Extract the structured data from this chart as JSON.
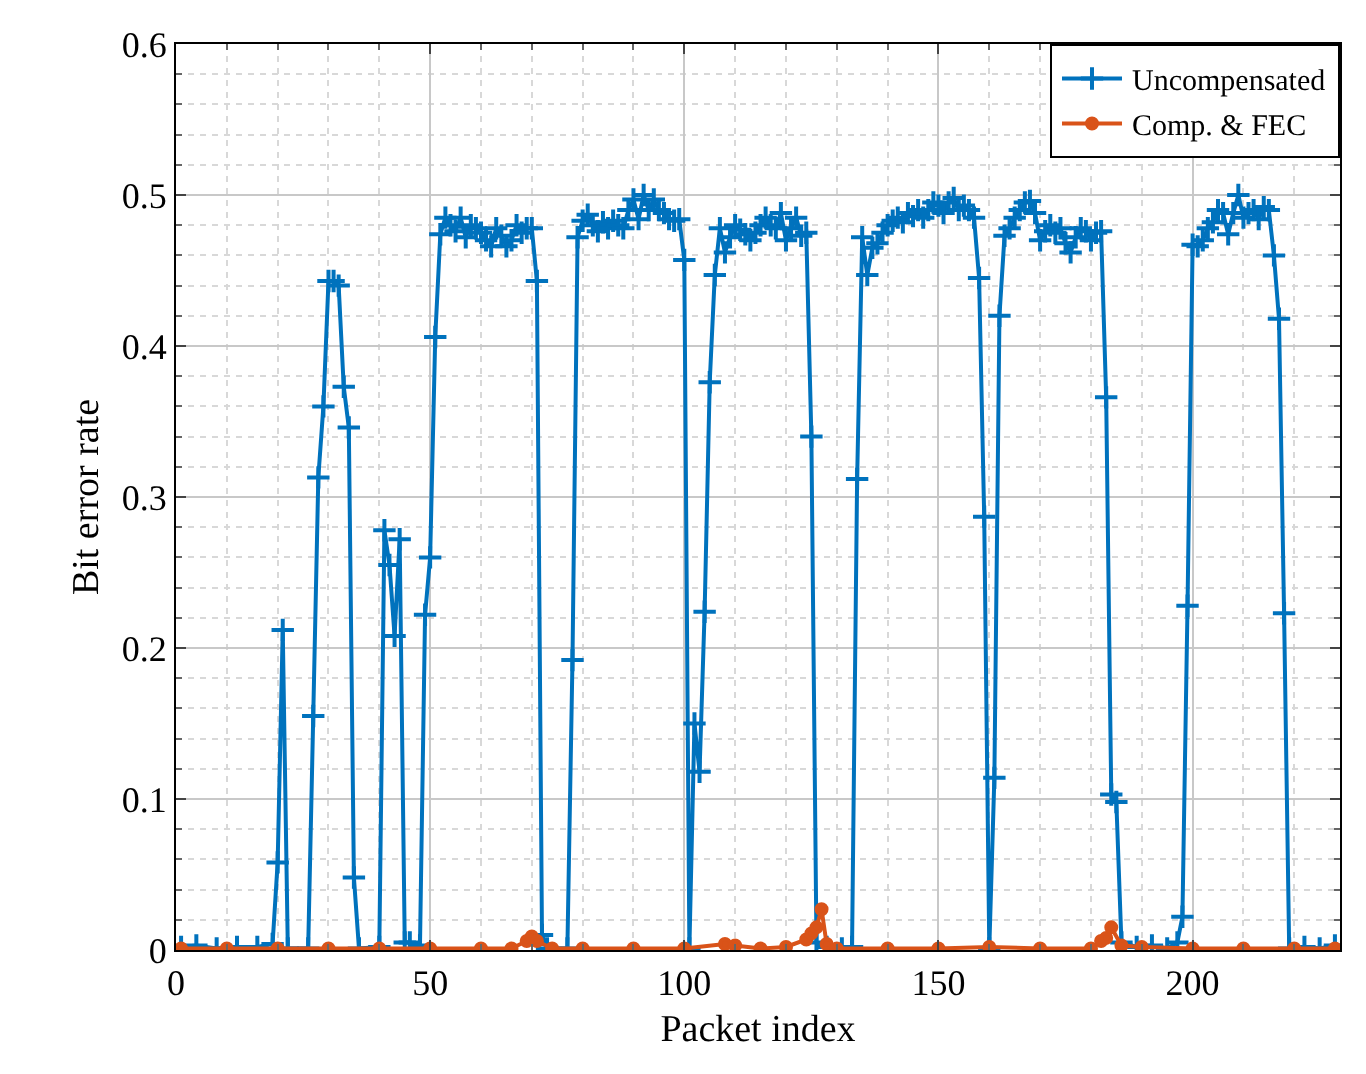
{
  "chart_data": {
    "type": "line",
    "xlabel": "Packet index",
    "ylabel": "Bit error rate",
    "xlim": [
      0,
      229
    ],
    "ylim": [
      0,
      0.6
    ],
    "xticks": [
      0,
      50,
      100,
      150,
      200
    ],
    "yticks": [
      0,
      0.1,
      0.2,
      0.3,
      0.4,
      0.5,
      0.6
    ],
    "grid": true,
    "legend": "top right",
    "line_style": "solid",
    "series": [
      {
        "name": "Uncompensated",
        "color": "#0072bd",
        "marker": "cross",
        "x": [
          1,
          4,
          8,
          12,
          16,
          19,
          20,
          21,
          22,
          26,
          27,
          28,
          29,
          30,
          31,
          32,
          33,
          34,
          35,
          36,
          40,
          41,
          42,
          43,
          44,
          45,
          46,
          48,
          49,
          50,
          51,
          52,
          53,
          54,
          55,
          56,
          57,
          58,
          59,
          60,
          61,
          62,
          63,
          64,
          65,
          66,
          67,
          68,
          69,
          70,
          71,
          72,
          73,
          77,
          78,
          79,
          80,
          81,
          82,
          83,
          84,
          85,
          86,
          87,
          88,
          89,
          90,
          91,
          92,
          93,
          94,
          95,
          96,
          97,
          98,
          99,
          100,
          101,
          102,
          103,
          104,
          105,
          106,
          107,
          108,
          109,
          110,
          111,
          112,
          113,
          114,
          115,
          116,
          117,
          118,
          119,
          120,
          121,
          122,
          123,
          124,
          125,
          126,
          128,
          131,
          133,
          134,
          135,
          136,
          137,
          138,
          139,
          140,
          141,
          142,
          143,
          144,
          145,
          146,
          147,
          148,
          149,
          150,
          151,
          152,
          153,
          154,
          155,
          156,
          157,
          158,
          159,
          160,
          161,
          162,
          163,
          164,
          165,
          166,
          167,
          168,
          169,
          170,
          171,
          172,
          173,
          174,
          175,
          176,
          177,
          178,
          179,
          180,
          181,
          182,
          183,
          184,
          185,
          186,
          189,
          192,
          195,
          197,
          198,
          199,
          200,
          201,
          202,
          203,
          204,
          205,
          206,
          207,
          208,
          209,
          210,
          211,
          212,
          213,
          214,
          215,
          216,
          217,
          218,
          219,
          222,
          225,
          228
        ],
        "values": [
          0.002,
          0.003,
          0.001,
          0.002,
          0.002,
          0.004,
          0.058,
          0.212,
          0.001,
          0.001,
          0.155,
          0.313,
          0.36,
          0.443,
          0.443,
          0.44,
          0.373,
          0.346,
          0.048,
          0.001,
          0.002,
          0.278,
          0.255,
          0.208,
          0.272,
          0.005,
          0.005,
          0.003,
          0.222,
          0.26,
          0.406,
          0.474,
          0.485,
          0.48,
          0.476,
          0.485,
          0.472,
          0.48,
          0.478,
          0.475,
          0.47,
          0.466,
          0.478,
          0.473,
          0.466,
          0.47,
          0.48,
          0.475,
          0.478,
          0.478,
          0.443,
          0.01,
          0.001,
          0.001,
          0.192,
          0.472,
          0.483,
          0.487,
          0.48,
          0.476,
          0.482,
          0.478,
          0.483,
          0.48,
          0.478,
          0.49,
          0.497,
          0.484,
          0.5,
          0.49,
          0.497,
          0.49,
          0.488,
          0.484,
          0.483,
          0.484,
          0.457,
          0.001,
          0.15,
          0.118,
          0.224,
          0.376,
          0.447,
          0.478,
          0.462,
          0.472,
          0.48,
          0.477,
          0.474,
          0.47,
          0.475,
          0.48,
          0.485,
          0.48,
          0.478,
          0.488,
          0.47,
          0.478,
          0.485,
          0.473,
          0.475,
          0.34,
          0.005,
          0.002,
          0.001,
          0.002,
          0.312,
          0.472,
          0.447,
          0.465,
          0.468,
          0.475,
          0.48,
          0.483,
          0.485,
          0.482,
          0.488,
          0.486,
          0.49,
          0.485,
          0.49,
          0.495,
          0.493,
          0.488,
          0.495,
          0.498,
          0.49,
          0.493,
          0.49,
          0.485,
          0.445,
          0.287,
          0.001,
          0.114,
          0.42,
          0.473,
          0.478,
          0.485,
          0.49,
          0.495,
          0.496,
          0.488,
          0.47,
          0.476,
          0.48,
          0.475,
          0.478,
          0.468,
          0.462,
          0.472,
          0.478,
          0.476,
          0.47,
          0.475,
          0.476,
          0.366,
          0.103,
          0.098,
          0.005,
          0.002,
          0.003,
          0.001,
          0.005,
          0.022,
          0.228,
          0.467,
          0.466,
          0.47,
          0.478,
          0.482,
          0.49,
          0.488,
          0.474,
          0.488,
          0.5,
          0.485,
          0.488,
          0.49,
          0.484,
          0.492,
          0.49,
          0.46,
          0.418,
          0.223,
          0.001,
          0.002,
          0.001,
          0.003
        ]
      },
      {
        "name": "Comp. & FEC",
        "color": "#d95319",
        "marker": "circle",
        "x": [
          1,
          10,
          20,
          30,
          40,
          50,
          60,
          66,
          69,
          70,
          71,
          74,
          80,
          90,
          100,
          108,
          110,
          115,
          120,
          124,
          125,
          126,
          127,
          128,
          130,
          140,
          150,
          160,
          170,
          180,
          182,
          183,
          184,
          186,
          190,
          200,
          210,
          220,
          228
        ],
        "values": [
          0.001,
          0.001,
          0.001,
          0.001,
          0.001,
          0.001,
          0.001,
          0.001,
          0.006,
          0.009,
          0.006,
          0.001,
          0.001,
          0.001,
          0.001,
          0.004,
          0.003,
          0.001,
          0.002,
          0.007,
          0.011,
          0.015,
          0.027,
          0.004,
          0.001,
          0.001,
          0.001,
          0.002,
          0.001,
          0.001,
          0.006,
          0.008,
          0.015,
          0.003,
          0.002,
          0.001,
          0.001,
          0.001,
          0.001
        ]
      }
    ]
  }
}
